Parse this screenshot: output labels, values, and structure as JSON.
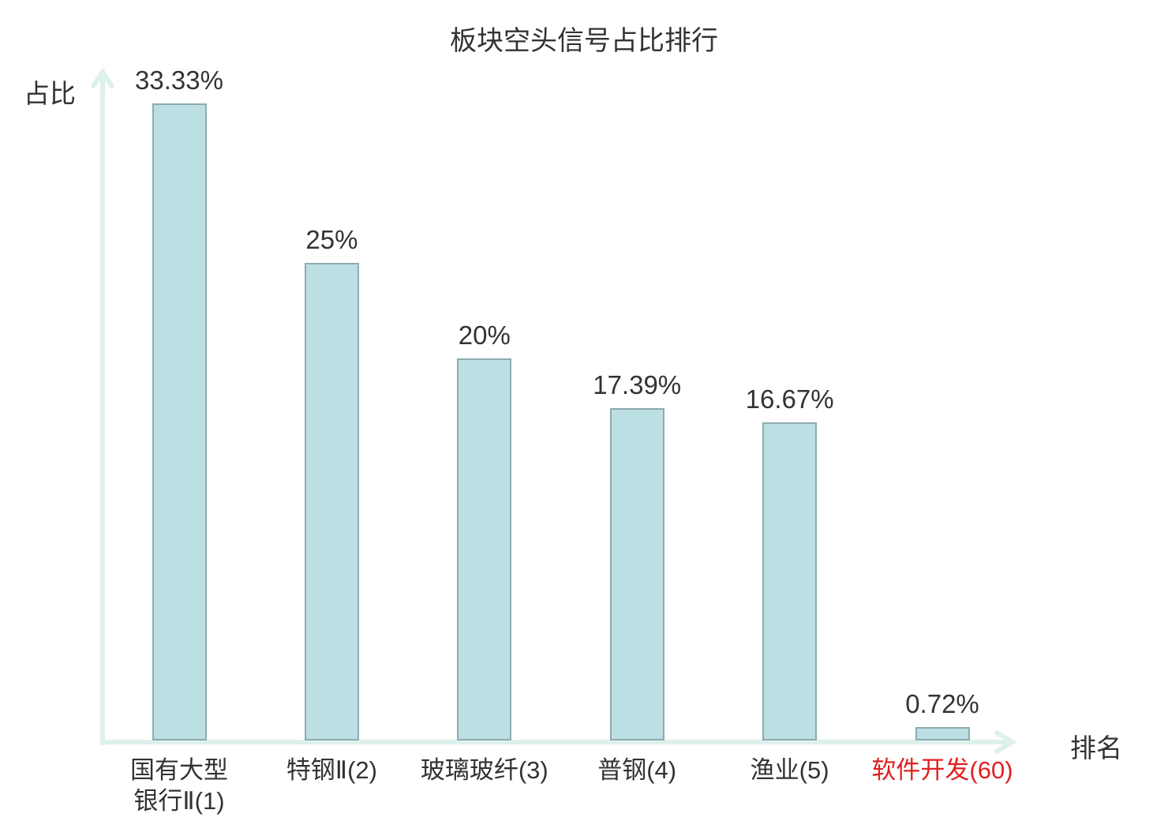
{
  "title": "板块空头信号占比排行",
  "axes": {
    "y_label": "占比",
    "x_label": "排名"
  },
  "chart_data": {
    "type": "bar",
    "title": "板块空头信号占比排行",
    "xlabel": "排名",
    "ylabel": "占比",
    "ylim": [
      0,
      35
    ],
    "grid": false,
    "legend": "none",
    "categories": [
      "国有大型\n银行Ⅱ(1)",
      "特钢Ⅱ(2)",
      "玻璃玻纤(3)",
      "普钢(4)",
      "渔业(5)",
      "软件开发(60)"
    ],
    "values": [
      33.33,
      25,
      20,
      17.39,
      16.67,
      0.72
    ],
    "value_labels": [
      "33.33%",
      "25%",
      "20%",
      "17.39%",
      "16.67%",
      "0.72%"
    ],
    "category_label_colors": [
      "#333333",
      "#333333",
      "#333333",
      "#333333",
      "#333333",
      "#e02020"
    ],
    "colors": {
      "bar_fill": "#bcdfe3",
      "bar_border": "#8fabaf",
      "axis": "#ddf0ec",
      "text": "#333333",
      "highlight": "#e02020"
    }
  }
}
